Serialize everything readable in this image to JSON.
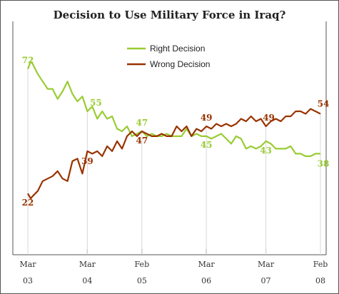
{
  "chart_data": {
    "type": "line",
    "title": "Decision to Use Military Force in Iraq?",
    "xlabel": "",
    "ylabel": "",
    "ylim": [
      0,
      100
    ],
    "grid": false,
    "legend": "top-center",
    "x_ticks": [
      {
        "month": "Mar",
        "year": "03"
      },
      {
        "month": "Mar",
        "year": "04"
      },
      {
        "month": "Feb",
        "year": "05"
      },
      {
        "month": "Mar",
        "year": "06"
      },
      {
        "month": "Mar",
        "year": "07"
      },
      {
        "month": "Feb",
        "year": "08"
      }
    ],
    "series": [
      {
        "name": "Right Decision",
        "color": "#99cc33",
        "points": [
          [
            "2003-03",
            72
          ],
          [
            "2003-03",
            75
          ],
          [
            "2003-04",
            74
          ],
          [
            "2003-05",
            70
          ],
          [
            "2003-06",
            67
          ],
          [
            "2003-07",
            64
          ],
          [
            "2003-08",
            64
          ],
          [
            "2003-09",
            60
          ],
          [
            "2003-10",
            63
          ],
          [
            "2003-11",
            67
          ],
          [
            "2003-12",
            62
          ],
          [
            "2004-01",
            59
          ],
          [
            "2004-02",
            61
          ],
          [
            "2004-03",
            55
          ],
          [
            "2004-04",
            57
          ],
          [
            "2004-05",
            52
          ],
          [
            "2004-06",
            55
          ],
          [
            "2004-07",
            52
          ],
          [
            "2004-08",
            53
          ],
          [
            "2004-09",
            48
          ],
          [
            "2004-10",
            47
          ],
          [
            "2004-11",
            49
          ],
          [
            "2004-12",
            45
          ],
          [
            "2005-01",
            46
          ],
          [
            "2005-02",
            47
          ],
          [
            "2005-03",
            45
          ],
          [
            "2005-04",
            46
          ],
          [
            "2005-05",
            45
          ],
          [
            "2005-06",
            45
          ],
          [
            "2005-07",
            46
          ],
          [
            "2005-08",
            45
          ],
          [
            "2005-09",
            45
          ],
          [
            "2005-10",
            45
          ],
          [
            "2005-11",
            48
          ],
          [
            "2005-12",
            45
          ],
          [
            "2006-01",
            46
          ],
          [
            "2006-02",
            45
          ],
          [
            "2006-03",
            45
          ],
          [
            "2006-04",
            44
          ],
          [
            "2006-05",
            45
          ],
          [
            "2006-06",
            46
          ],
          [
            "2006-07",
            44
          ],
          [
            "2006-08",
            42
          ],
          [
            "2006-09",
            45
          ],
          [
            "2006-10",
            44
          ],
          [
            "2006-11",
            40
          ],
          [
            "2006-12",
            41
          ],
          [
            "2007-01",
            40
          ],
          [
            "2007-02",
            41
          ],
          [
            "2007-03",
            43
          ],
          [
            "2007-04",
            42
          ],
          [
            "2007-05",
            40
          ],
          [
            "2007-06",
            40
          ],
          [
            "2007-07",
            40
          ],
          [
            "2007-08",
            41
          ],
          [
            "2007-09",
            38
          ],
          [
            "2007-10",
            38
          ],
          [
            "2007-11",
            37
          ],
          [
            "2007-12",
            37
          ],
          [
            "2008-01",
            38
          ],
          [
            "2008-02",
            38
          ]
        ],
        "labels": [
          {
            "x": "2003-03",
            "value": 72
          },
          {
            "x": "2004-03",
            "value": 55
          },
          {
            "x": "2005-02",
            "value": 47
          },
          {
            "x": "2006-03",
            "value": 45
          },
          {
            "x": "2007-03",
            "value": 43
          },
          {
            "x": "2008-02",
            "value": 38
          }
        ]
      },
      {
        "name": "Wrong Decision",
        "color": "#993300",
        "points": [
          [
            "2003-03",
            22
          ],
          [
            "2003-03",
            20
          ],
          [
            "2003-04",
            21
          ],
          [
            "2003-05",
            23
          ],
          [
            "2003-06",
            27
          ],
          [
            "2003-07",
            28
          ],
          [
            "2003-08",
            29
          ],
          [
            "2003-09",
            31
          ],
          [
            "2003-10",
            28
          ],
          [
            "2003-11",
            27
          ],
          [
            "2003-12",
            35
          ],
          [
            "2004-01",
            36
          ],
          [
            "2004-02",
            30
          ],
          [
            "2004-03",
            39
          ],
          [
            "2004-04",
            38
          ],
          [
            "2004-05",
            39
          ],
          [
            "2004-06",
            37
          ],
          [
            "2004-07",
            41
          ],
          [
            "2004-08",
            39
          ],
          [
            "2004-09",
            43
          ],
          [
            "2004-10",
            40
          ],
          [
            "2004-11",
            45
          ],
          [
            "2004-12",
            47
          ],
          [
            "2005-01",
            45
          ],
          [
            "2005-02",
            47
          ],
          [
            "2005-03",
            46
          ],
          [
            "2005-04",
            45
          ],
          [
            "2005-05",
            45
          ],
          [
            "2005-06",
            46
          ],
          [
            "2005-07",
            45
          ],
          [
            "2005-08",
            45
          ],
          [
            "2005-09",
            49
          ],
          [
            "2005-10",
            47
          ],
          [
            "2005-11",
            49
          ],
          [
            "2005-12",
            45
          ],
          [
            "2006-01",
            48
          ],
          [
            "2006-02",
            47
          ],
          [
            "2006-03",
            49
          ],
          [
            "2006-04",
            48
          ],
          [
            "2006-05",
            50
          ],
          [
            "2006-06",
            49
          ],
          [
            "2006-07",
            50
          ],
          [
            "2006-08",
            49
          ],
          [
            "2006-09",
            50
          ],
          [
            "2006-10",
            52
          ],
          [
            "2006-11",
            51
          ],
          [
            "2006-12",
            53
          ],
          [
            "2007-01",
            51
          ],
          [
            "2007-02",
            52
          ],
          [
            "2007-03",
            49
          ],
          [
            "2007-04",
            51
          ],
          [
            "2007-05",
            52
          ],
          [
            "2007-06",
            51
          ],
          [
            "2007-07",
            53
          ],
          [
            "2007-08",
            53
          ],
          [
            "2007-09",
            55
          ],
          [
            "2007-10",
            55
          ],
          [
            "2007-11",
            54
          ],
          [
            "2007-12",
            56
          ],
          [
            "2008-01",
            55
          ],
          [
            "2008-02",
            54
          ]
        ],
        "labels": [
          {
            "x": "2003-03",
            "value": 22
          },
          {
            "x": "2004-03",
            "value": 39
          },
          {
            "x": "2005-02",
            "value": 47
          },
          {
            "x": "2006-03",
            "value": 49
          },
          {
            "x": "2007-03",
            "value": 49
          },
          {
            "x": "2008-02",
            "value": 54
          }
        ]
      }
    ]
  }
}
